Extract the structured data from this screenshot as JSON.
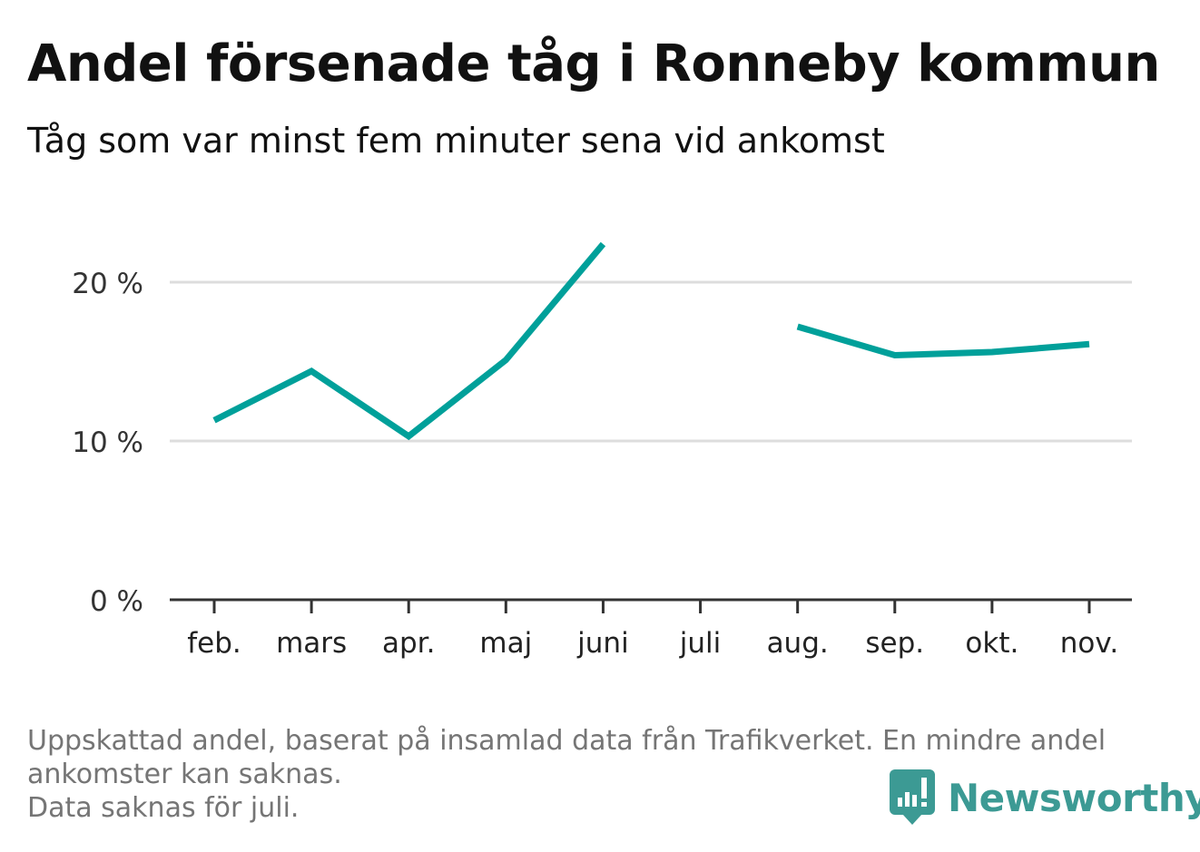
{
  "title": "Andel försenade tåg i Ronneby kommun",
  "subtitle": "Tåg som var minst fem minuter sena vid ankomst",
  "chart_data": {
    "type": "line",
    "categories": [
      "feb.",
      "mars",
      "apr.",
      "maj",
      "juni",
      "juli",
      "aug.",
      "sep.",
      "okt.",
      "nov."
    ],
    "series": [
      {
        "values": [
          11.3,
          14.4,
          10.3,
          15.1,
          22.4,
          null,
          17.2,
          15.4,
          15.6,
          16.1
        ]
      }
    ],
    "yticks": [
      {
        "value": 0,
        "label": "0 %"
      },
      {
        "value": 10,
        "label": "10 %"
      },
      {
        "value": 20,
        "label": "20 %"
      }
    ],
    "ylim": [
      0,
      25
    ],
    "grid": true,
    "line_color": "#00a09a",
    "grid_color": "#dddddd",
    "axis_color": "#333333"
  },
  "footnote": {
    "lines": [
      "Uppskattad andel, baserat på insamlad data från Trafikverket. En mindre andel",
      "ankomster kan saknas.",
      "Data saknas för juli."
    ]
  },
  "brand": {
    "name": "Newsworthy",
    "icon": "bar-chart-speech-bubble-icon",
    "color": "#3c9a94"
  }
}
